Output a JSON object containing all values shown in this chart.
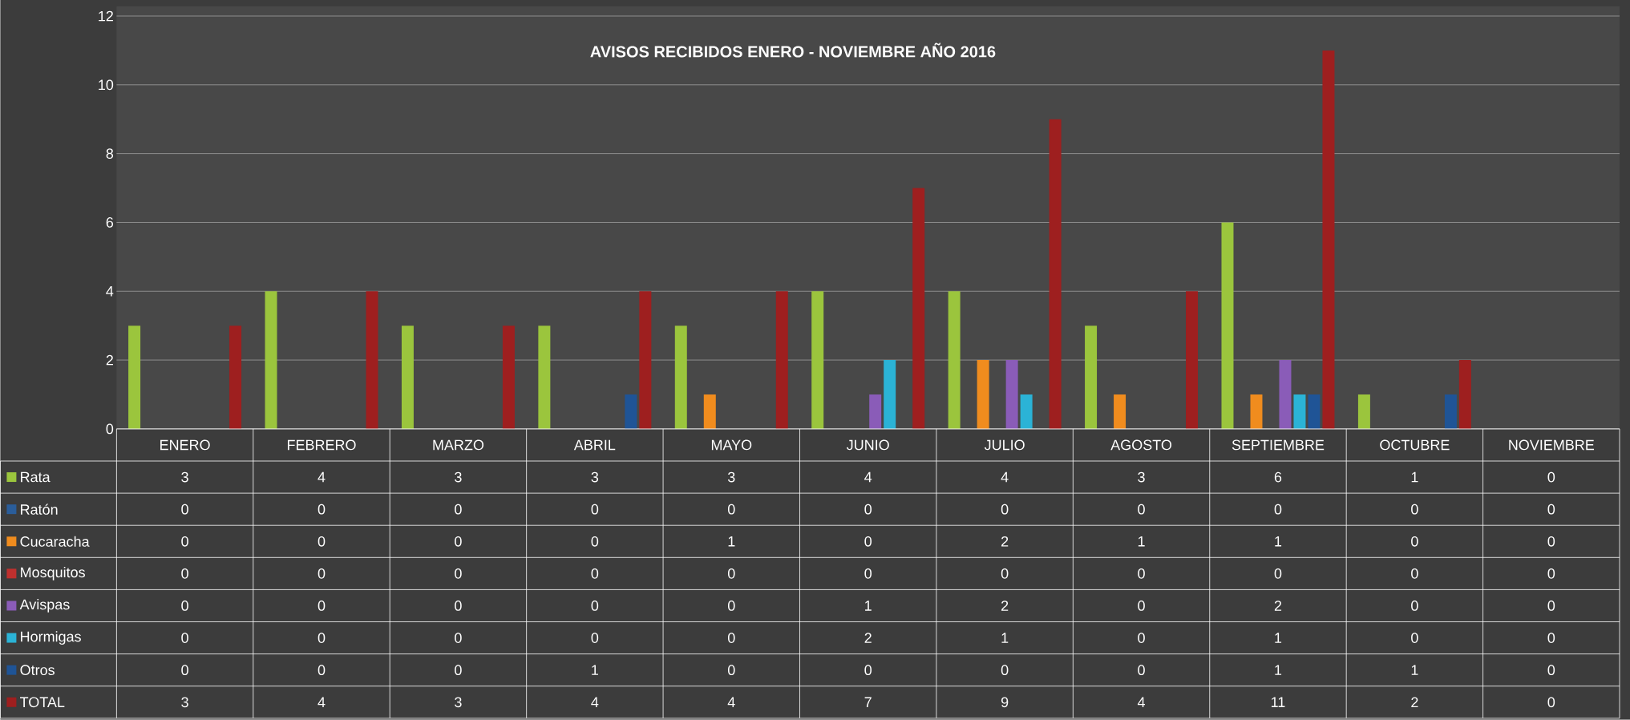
{
  "chart_data": {
    "type": "bar",
    "title": "AVISOS RECIBIDOS    ENERO - NOVIEMBRE AÑO  2016",
    "categories": [
      "ENERO",
      "FEBRERO",
      "MARZO",
      "ABRIL",
      "MAYO",
      "JUNIO",
      "JULIO",
      "AGOSTO",
      "SEPTIEMBRE",
      "OCTUBRE",
      "NOVIEMBRE"
    ],
    "series": [
      {
        "name": "Rata",
        "color": "#9bc53d",
        "values": [
          3,
          4,
          3,
          3,
          3,
          4,
          4,
          3,
          6,
          1,
          0
        ]
      },
      {
        "name": "Ratón",
        "color": "#2a5d9a",
        "values": [
          0,
          0,
          0,
          0,
          0,
          0,
          0,
          0,
          0,
          0,
          0
        ]
      },
      {
        "name": "Cucaracha",
        "color": "#f08c1e",
        "values": [
          0,
          0,
          0,
          0,
          1,
          0,
          2,
          1,
          1,
          0,
          0
        ]
      },
      {
        "name": "Mosquitos",
        "color": "#c0302e",
        "values": [
          0,
          0,
          0,
          0,
          0,
          0,
          0,
          0,
          0,
          0,
          0
        ]
      },
      {
        "name": "Avispas",
        "color": "#8a5cb8",
        "values": [
          0,
          0,
          0,
          0,
          0,
          1,
          2,
          0,
          2,
          0,
          0
        ]
      },
      {
        "name": "Hormigas",
        "color": "#2bb3d6",
        "values": [
          0,
          0,
          0,
          0,
          0,
          2,
          1,
          0,
          1,
          0,
          0
        ]
      },
      {
        "name": "Otros",
        "color": "#1f5496",
        "values": [
          0,
          0,
          0,
          1,
          0,
          0,
          0,
          0,
          1,
          1,
          0
        ]
      },
      {
        "name": "TOTAL",
        "color": "#9e1f1f",
        "values": [
          3,
          4,
          3,
          4,
          4,
          7,
          9,
          4,
          11,
          2,
          0
        ]
      }
    ],
    "ylim": [
      0,
      12
    ],
    "yticks": [
      0,
      2,
      4,
      6,
      8,
      10,
      12
    ],
    "grid": "y",
    "legend": "bottom",
    "data_labels": true
  }
}
